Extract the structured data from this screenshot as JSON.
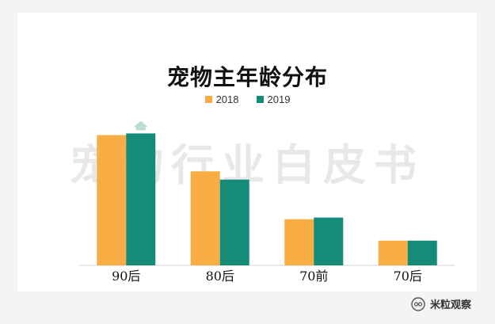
{
  "chart_data": {
    "type": "bar",
    "title": "宠物主年龄分布",
    "categories": [
      "90后",
      "80后",
      "70前",
      "70后"
    ],
    "series": [
      {
        "name": "2018",
        "values": [
          79,
          57,
          28,
          15
        ],
        "color": "#f8ad45"
      },
      {
        "name": "2019",
        "values": [
          80,
          52,
          29,
          15
        ],
        "color": "#168b78"
      }
    ],
    "ylim": [
      0,
      85
    ],
    "grid": false,
    "legend_position": "top-center",
    "annotation_icon": "up-arrow-icon"
  },
  "watermark": {
    "text": "宠物行业白皮书"
  },
  "brand": {
    "name": "米粒观察",
    "icon": "wechat-icon"
  }
}
